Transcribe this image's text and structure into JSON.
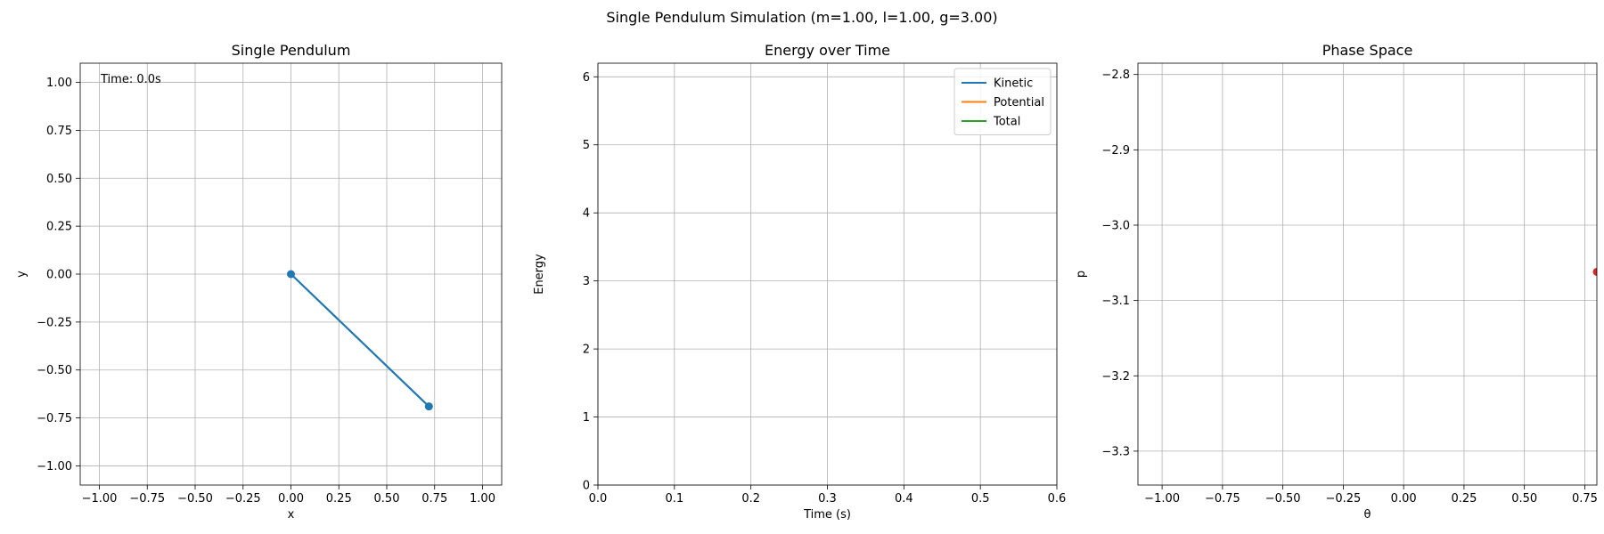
{
  "figure": {
    "suptitle": "Single Pendulum Simulation (m=1.00, l=1.00, g=3.00)"
  },
  "chart_data": [
    {
      "type": "line",
      "title": "Single Pendulum",
      "xlabel": "x",
      "ylabel": "y",
      "xlim": [
        -1.1,
        1.1
      ],
      "ylim": [
        -1.1,
        1.1
      ],
      "xticks": [
        -1.0,
        -0.75,
        -0.5,
        -0.25,
        0.0,
        0.25,
        0.5,
        0.75,
        1.0
      ],
      "xtick_labels": [
        "−1.00",
        "−0.75",
        "−0.50",
        "−0.25",
        "0.00",
        "0.25",
        "0.50",
        "0.75",
        "1.00"
      ],
      "yticks": [
        -1.0,
        -0.75,
        -0.5,
        -0.25,
        0.0,
        0.25,
        0.5,
        0.75,
        1.0
      ],
      "ytick_labels": [
        "−1.00",
        "−0.75",
        "−0.50",
        "−0.25",
        "0.00",
        "0.25",
        "0.50",
        "0.75",
        "1.00"
      ],
      "grid": true,
      "annotation": "Time: 0.0s",
      "series": [
        {
          "x": [
            0.0,
            0.72
          ],
          "y": [
            0.0,
            -0.69
          ],
          "color": "#1f77b4",
          "marker": "o"
        }
      ]
    },
    {
      "type": "line",
      "title": "Energy over Time",
      "xlabel": "Time (s)",
      "ylabel": "Energy",
      "xlim": [
        0,
        0.6
      ],
      "ylim": [
        0,
        6.2
      ],
      "xticks": [
        0.0,
        0.1,
        0.2,
        0.3,
        0.4,
        0.5,
        0.6
      ],
      "xtick_labels": [
        "0.0",
        "0.1",
        "0.2",
        "0.3",
        "0.4",
        "0.5",
        "0.6"
      ],
      "yticks": [
        0,
        1,
        2,
        3,
        4,
        5,
        6
      ],
      "ytick_labels": [
        "0",
        "1",
        "2",
        "3",
        "4",
        "5",
        "6"
      ],
      "grid": true,
      "legend_position": "top-right",
      "series": [
        {
          "name": "Kinetic",
          "x": [],
          "y": [],
          "color": "#1f77b4"
        },
        {
          "name": "Potential",
          "x": [],
          "y": [],
          "color": "#ff7f0e"
        },
        {
          "name": "Total",
          "x": [],
          "y": [],
          "color": "#2ca02c"
        }
      ]
    },
    {
      "type": "scatter",
      "title": "Phase Space",
      "xlabel": "θ",
      "ylabel": "p",
      "xlim": [
        -1.1,
        0.8
      ],
      "ylim": [
        -3.345,
        -2.785
      ],
      "xticks": [
        -1.0,
        -0.75,
        -0.5,
        -0.25,
        0.0,
        0.25,
        0.5,
        0.75
      ],
      "xtick_labels": [
        "−1.00",
        "−0.75",
        "−0.50",
        "−0.25",
        "0.00",
        "0.25",
        "0.50",
        "0.75"
      ],
      "yticks": [
        -3.3,
        -3.2,
        -3.1,
        -3.0,
        -2.9,
        -2.8
      ],
      "ytick_labels": [
        "−3.3",
        "−3.2",
        "−3.1",
        "−3.0",
        "−2.9",
        "−2.8"
      ],
      "grid": true,
      "series": [
        {
          "x": [
            0.8
          ],
          "y": [
            -3.062
          ],
          "color": "#d62728",
          "marker": "o"
        }
      ]
    }
  ]
}
